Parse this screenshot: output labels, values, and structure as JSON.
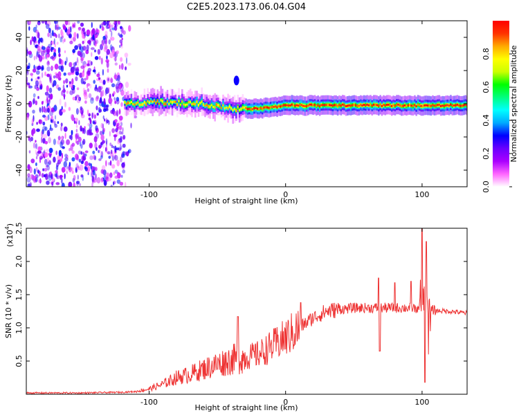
{
  "title": "C2E5.2023.173.06.04.G04",
  "chart_data": [
    {
      "type": "heatmap",
      "name": "spectrogram",
      "xlabel": "Height of straight line (km)",
      "ylabel": "Frequency (Hz)",
      "xlim": [
        -190,
        133
      ],
      "ylim": [
        -50,
        50
      ],
      "xticks": [
        -100,
        0,
        100
      ],
      "yticks": [
        -40,
        -20,
        0,
        20,
        40
      ],
      "xtick_labels": [
        "-100",
        "0",
        "100"
      ],
      "ytick_labels": [
        "-40",
        "-20",
        "0",
        "20",
        "40"
      ],
      "noise_region_x": [
        -190,
        -118
      ],
      "signal_track": {
        "x": [
          -118,
          -90,
          -60,
          -40,
          -20,
          0,
          20,
          60,
          100,
          133
        ],
        "freq_hz": [
          0,
          1,
          0,
          -3,
          -3,
          -1,
          -1,
          -1,
          -1,
          -1
        ]
      },
      "colorbar": {
        "label": "Normalized spectral amplitude",
        "range": [
          0,
          1
        ],
        "ticks": [
          0.0,
          0.2,
          0.4,
          0.6,
          0.8
        ],
        "tick_labels": [
          "0.0",
          "0.2",
          "0.4",
          "0.6",
          "0.8"
        ],
        "colors": [
          "#ffffff",
          "#ff66ff",
          "#aa00ff",
          "#6a00ff",
          "#0000ff",
          "#00aaff",
          "#00ffff",
          "#00ff80",
          "#00ff00",
          "#ccff00",
          "#ffff00",
          "#ffaa00",
          "#ff3300",
          "#ff0000"
        ]
      }
    },
    {
      "type": "line",
      "name": "snr",
      "xlabel": "Height of straight line (km)",
      "ylabel": "SNR (10 * v/v)",
      "y_multiplier": "(x10",
      "y_multiplier_exp": "4",
      "y_multiplier_close": ")",
      "xlim": [
        -190,
        133
      ],
      "ylim": [
        0,
        2.5
      ],
      "xticks": [
        -100,
        0,
        100
      ],
      "yticks": [
        0.5,
        1.0,
        1.5,
        2.0,
        2.5
      ],
      "xtick_labels": [
        "-100",
        "0",
        "100"
      ],
      "ytick_labels": [
        "0.5",
        "1.0",
        "1.5",
        "2.0",
        "2.5"
      ],
      "color": "#ee3333",
      "series": [
        {
          "name": "SNR",
          "x": [
            -190,
            -150,
            -120,
            -110,
            -100,
            -90,
            -80,
            -70,
            -60,
            -50,
            -40,
            -30,
            -20,
            -10,
            0,
            10,
            20,
            30,
            40,
            50,
            60,
            70,
            80,
            90,
            100,
            110,
            120,
            133
          ],
          "values": [
            0.02,
            0.02,
            0.03,
            0.04,
            0.08,
            0.15,
            0.25,
            0.3,
            0.38,
            0.45,
            0.52,
            0.55,
            0.6,
            0.72,
            0.85,
            1.0,
            1.15,
            1.25,
            1.28,
            1.3,
            1.3,
            1.3,
            1.3,
            1.3,
            1.3,
            1.26,
            1.25,
            1.22
          ]
        }
      ],
      "spikes": [
        {
          "x": -35,
          "value": 1.17
        },
        {
          "x": 11,
          "value": 1.38
        },
        {
          "x": 68,
          "value": 1.75
        },
        {
          "x": 69,
          "value": 0.65
        },
        {
          "x": 80,
          "value": 1.68
        },
        {
          "x": 92,
          "value": 1.7
        },
        {
          "x": 100,
          "value": 2.5
        },
        {
          "x": 102,
          "value": 0.18
        },
        {
          "x": 103,
          "value": 2.3
        },
        {
          "x": 105,
          "value": 0.6
        }
      ]
    }
  ]
}
